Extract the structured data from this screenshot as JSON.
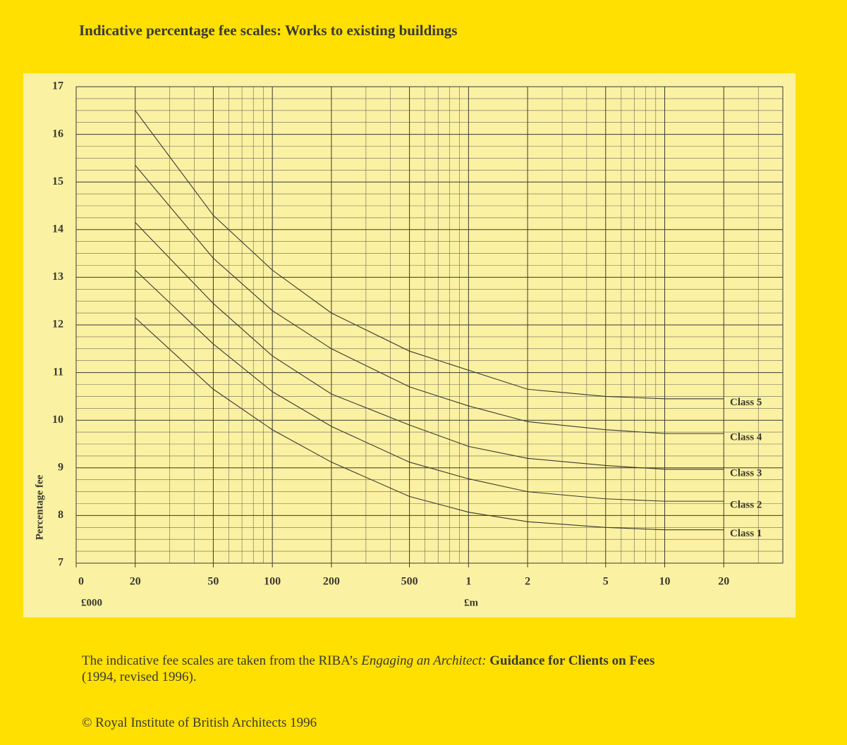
{
  "chart_data": {
    "type": "line",
    "title": "Indicative percentage fee scales: Works to existing buildings",
    "ylabel": "Percentage fee",
    "x_unit_labels": [
      "£000",
      "£m"
    ],
    "log_x": true,
    "grid": true,
    "line_color": "#3a3a30",
    "x": [
      20,
      50,
      100,
      200,
      500,
      1000,
      2000,
      5000,
      10000,
      20000
    ],
    "series": [
      {
        "name": "Class 1",
        "values": [
          12.15,
          10.65,
          9.8,
          9.12,
          8.4,
          8.07,
          7.87,
          7.75,
          7.7,
          7.7
        ]
      },
      {
        "name": "Class 2",
        "values": [
          13.15,
          11.6,
          10.6,
          9.87,
          9.12,
          8.77,
          8.5,
          8.35,
          8.3,
          8.3
        ]
      },
      {
        "name": "Class 3",
        "values": [
          14.15,
          12.45,
          11.35,
          10.55,
          9.9,
          9.45,
          9.2,
          9.05,
          8.97,
          8.97
        ]
      },
      {
        "name": "Class 4",
        "values": [
          15.35,
          13.4,
          12.3,
          11.5,
          10.7,
          10.3,
          9.97,
          9.8,
          9.72,
          9.72
        ]
      },
      {
        "name": "Class 5",
        "values": [
          16.5,
          14.3,
          13.15,
          12.25,
          11.45,
          11.05,
          10.65,
          10.5,
          10.45,
          10.45
        ]
      }
    ],
    "xlim": [
      10,
      40000
    ],
    "xticks": [
      {
        "value": 10,
        "label": "0"
      },
      20,
      50,
      100,
      200,
      500,
      {
        "value": 1000,
        "label": "1"
      },
      {
        "value": 2000,
        "label": "2"
      },
      {
        "value": 5000,
        "label": "5"
      },
      {
        "value": 10000,
        "label": "10"
      },
      {
        "value": 20000,
        "label": "20"
      }
    ],
    "xminor": [
      30,
      40,
      60,
      70,
      80,
      90,
      300,
      400,
      600,
      700,
      800,
      900,
      3000,
      4000,
      6000,
      7000,
      8000,
      9000,
      30000
    ],
    "ylim": [
      7,
      17
    ],
    "yticks": [
      7,
      8,
      9,
      10,
      11,
      12,
      13,
      14,
      15,
      16,
      17
    ],
    "yminor": [
      7.25,
      7.5,
      7.75,
      8.25,
      8.5,
      8.75,
      9.25,
      9.5,
      9.75,
      10.25,
      10.5,
      10.75,
      11.25,
      11.5,
      11.75,
      12.25,
      12.5,
      12.75,
      13.25,
      13.5,
      13.75,
      14.25,
      14.5,
      14.75,
      15.25,
      15.5,
      15.75,
      16.25,
      16.5,
      16.75
    ]
  },
  "footnote": {
    "parts": [
      "The indicative fee scales are taken from the RIBA’s ",
      "Engaging an Architect:",
      " Guidance for Clients on Fees"
    ],
    "line2": "(1994, revised 1996).",
    "copyright": "© Royal Institute of British Architects 1996"
  }
}
